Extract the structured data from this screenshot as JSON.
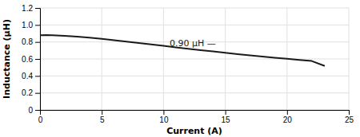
{
  "chart_data": {
    "type": "line",
    "xlabel": "Current (A)",
    "ylabel": "Inductance (μH)",
    "x": [
      0,
      0.5,
      1,
      2,
      3,
      4,
      5,
      6,
      7,
      8,
      9,
      10,
      11,
      12,
      13,
      14,
      15,
      16,
      17,
      18,
      19,
      20,
      21,
      22,
      23
    ],
    "values": [
      0.88,
      0.882,
      0.88,
      0.873,
      0.862,
      0.85,
      0.836,
      0.82,
      0.804,
      0.788,
      0.771,
      0.754,
      0.737,
      0.72,
      0.704,
      0.688,
      0.672,
      0.657,
      0.643,
      0.629,
      0.615,
      0.602,
      0.589,
      0.576,
      0.52
    ],
    "color": "#1a1a1a",
    "xlim": [
      0,
      25
    ],
    "ylim": [
      0,
      1.2
    ],
    "xticks": [
      0,
      5,
      10,
      15,
      20,
      25
    ],
    "yticks": [
      0,
      0.2,
      0.4,
      0.6,
      0.8,
      {
        "value": 1.0,
        "label": "1.0"
      },
      1.2
    ],
    "grid": true,
    "annotations": [
      {
        "text": "0.90 μH —",
        "x": 10.5,
        "y": 0.775
      }
    ]
  }
}
